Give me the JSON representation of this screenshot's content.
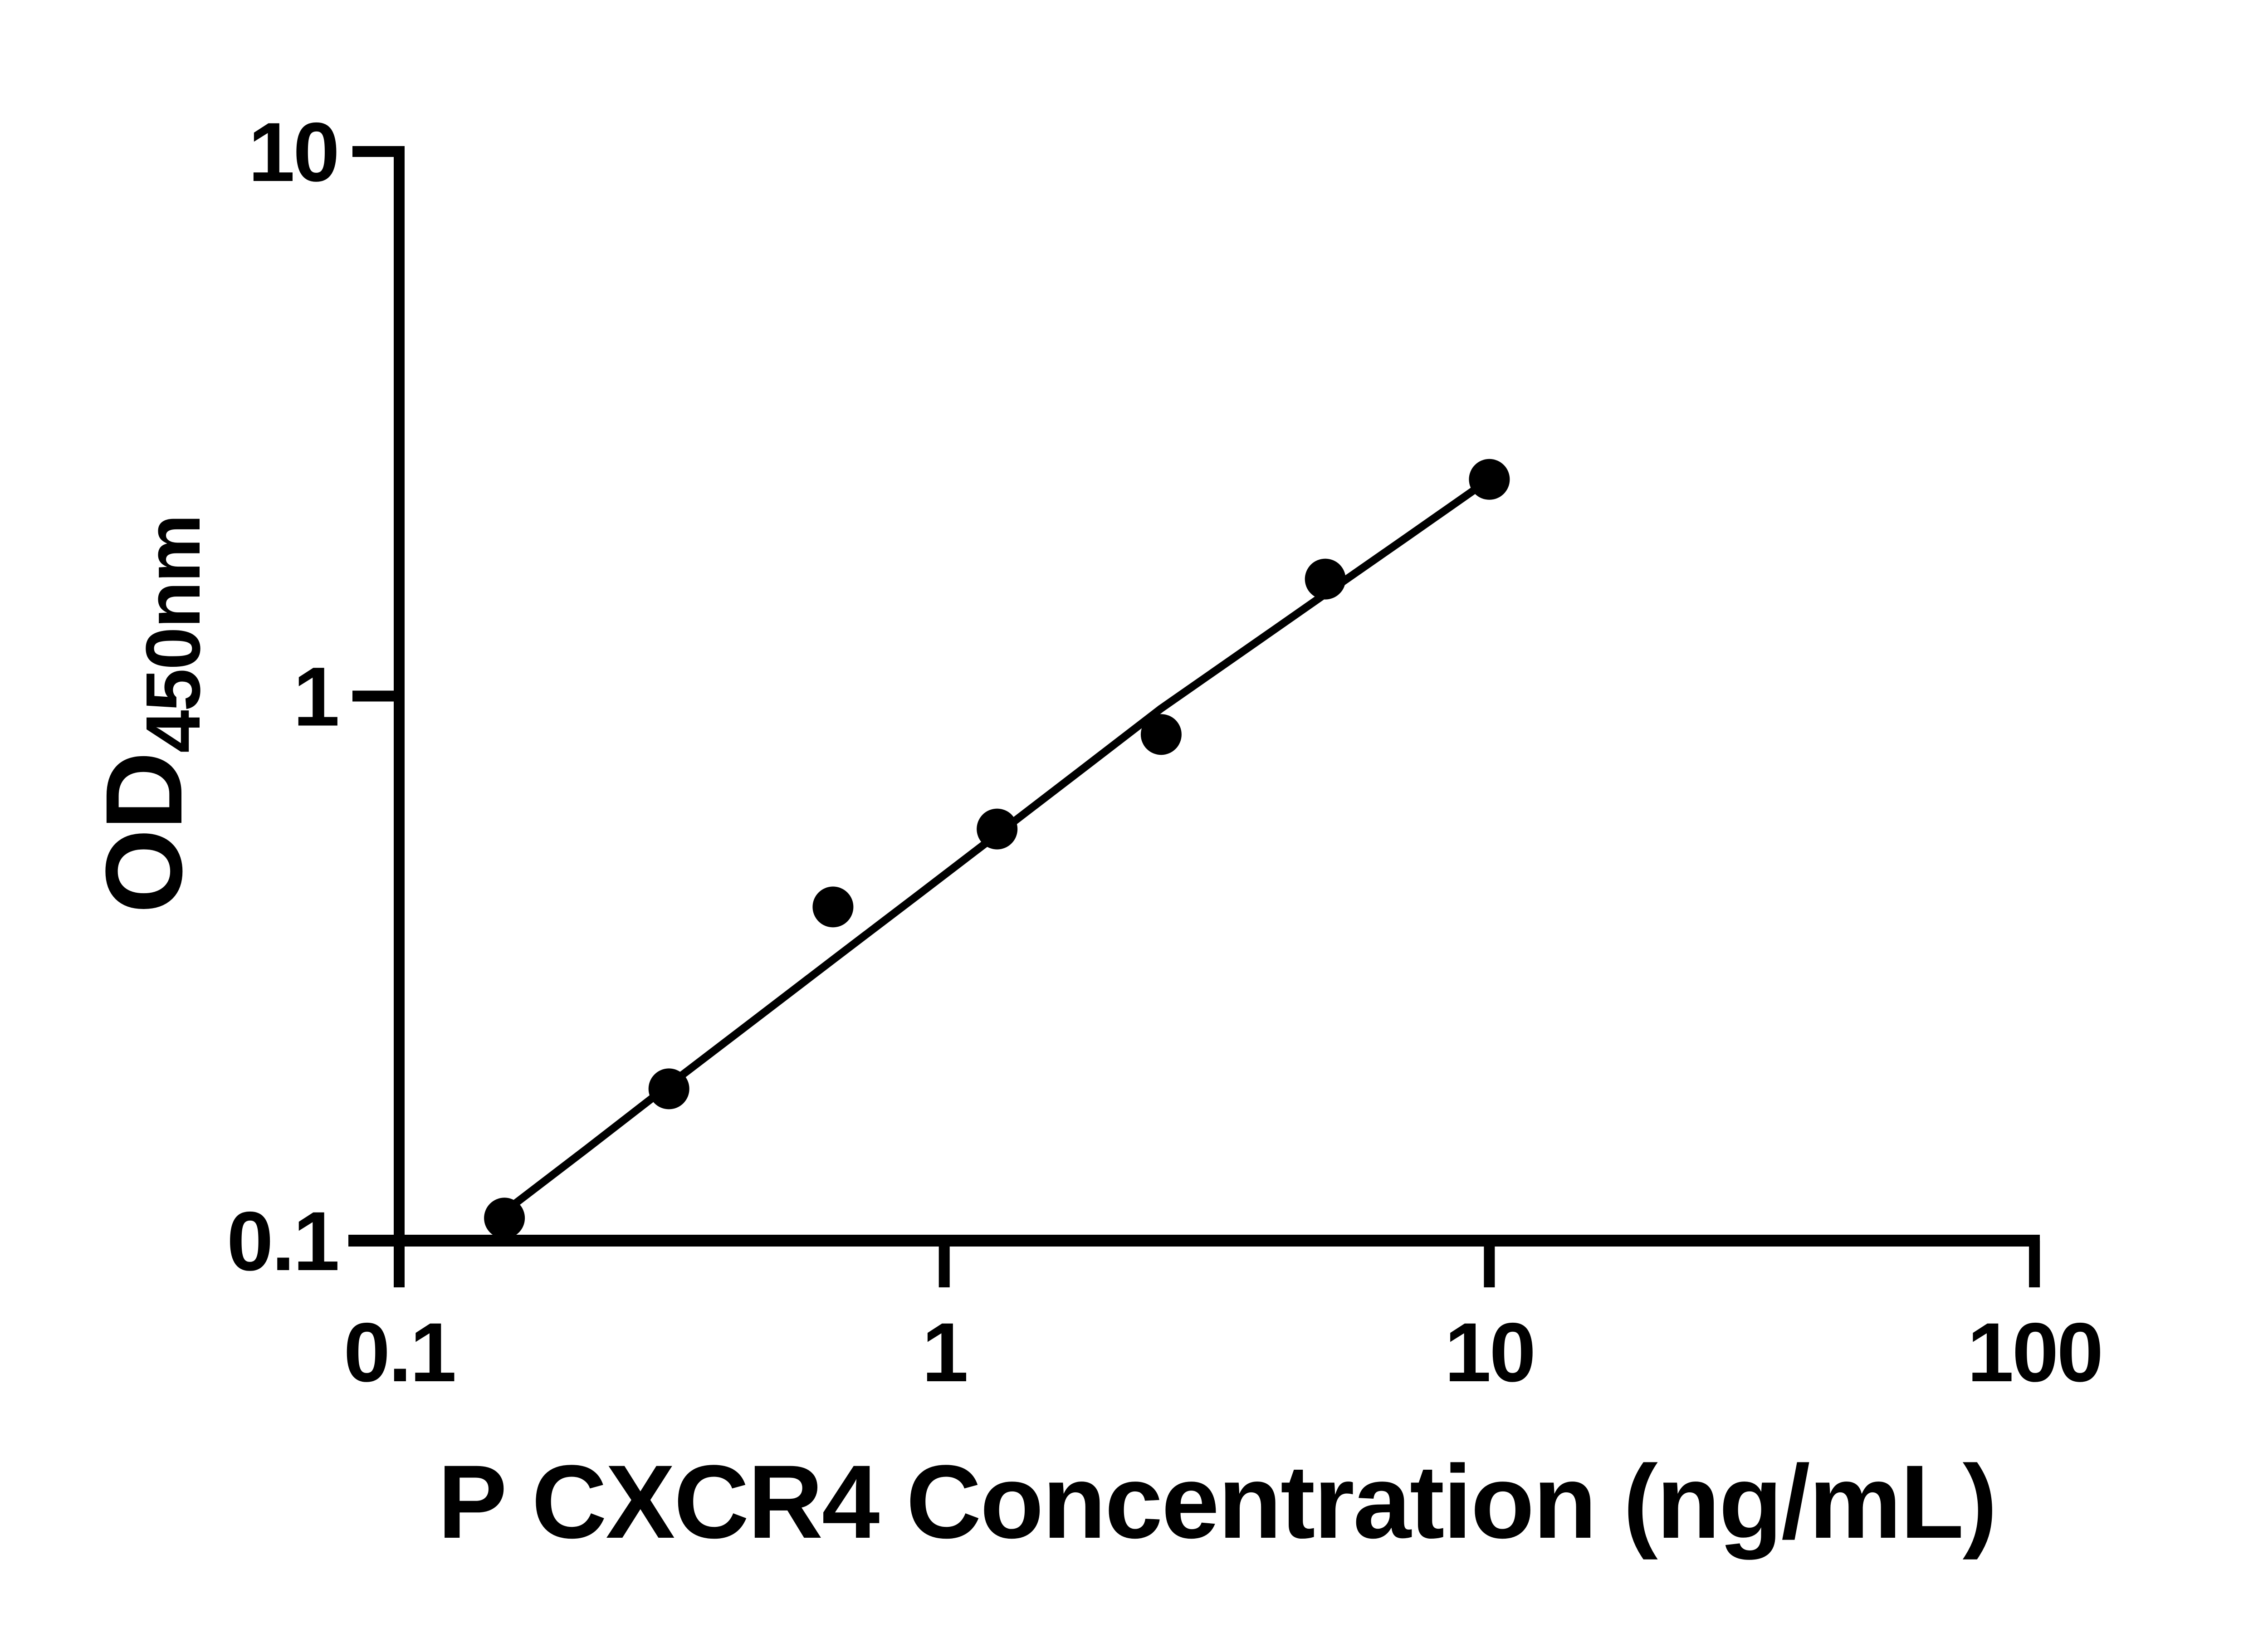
{
  "chart_data": {
    "type": "scatter",
    "title": "",
    "xlabel": "P CXCR4 Concentration (ng/mL)",
    "ylabel": "OD450nm",
    "ylabel_main": "OD",
    "ylabel_sub": "450nm",
    "x_scale": "log",
    "y_scale": "log",
    "xlim": [
      0.1,
      100
    ],
    "ylim": [
      0.1,
      10
    ],
    "x_ticks": [
      0.1,
      1,
      10,
      100
    ],
    "x_tick_labels": [
      "0.1",
      "1",
      "10",
      "100"
    ],
    "y_ticks": [
      10,
      1,
      0.1
    ],
    "y_tick_labels": [
      "10",
      "1",
      "0.1"
    ],
    "grid": false,
    "legend": false,
    "marker": {
      "shape": "filled-circle",
      "color": "#000000",
      "radius_px": 45
    },
    "series": [
      {
        "name": "standard-curve",
        "points": [
          {
            "x": 0.156,
            "od": 0.11
          },
          {
            "x": 0.3125,
            "od": 0.19
          },
          {
            "x": 0.625,
            "od": 0.41
          },
          {
            "x": 1.25,
            "od": 0.57
          },
          {
            "x": 2.5,
            "od": 0.85
          },
          {
            "x": 5,
            "od": 1.64
          },
          {
            "x": 10,
            "od": 2.5
          }
        ]
      }
    ],
    "fit_curve": {
      "name": "fitted-standard-curve",
      "samples": [
        [
          0.156,
          0.113
        ],
        [
          0.22,
          0.147
        ],
        [
          0.3125,
          0.193
        ],
        [
          0.45,
          0.255
        ],
        [
          0.625,
          0.328
        ],
        [
          0.9,
          0.433
        ],
        [
          1.25,
          0.557
        ],
        [
          1.8,
          0.737
        ],
        [
          2.5,
          0.949
        ],
        [
          3.5,
          1.2
        ],
        [
          5,
          1.54
        ],
        [
          7,
          1.947
        ],
        [
          10,
          2.5
        ]
      ]
    },
    "colors": {
      "ink": "#000000",
      "background": "#ffffff"
    }
  }
}
